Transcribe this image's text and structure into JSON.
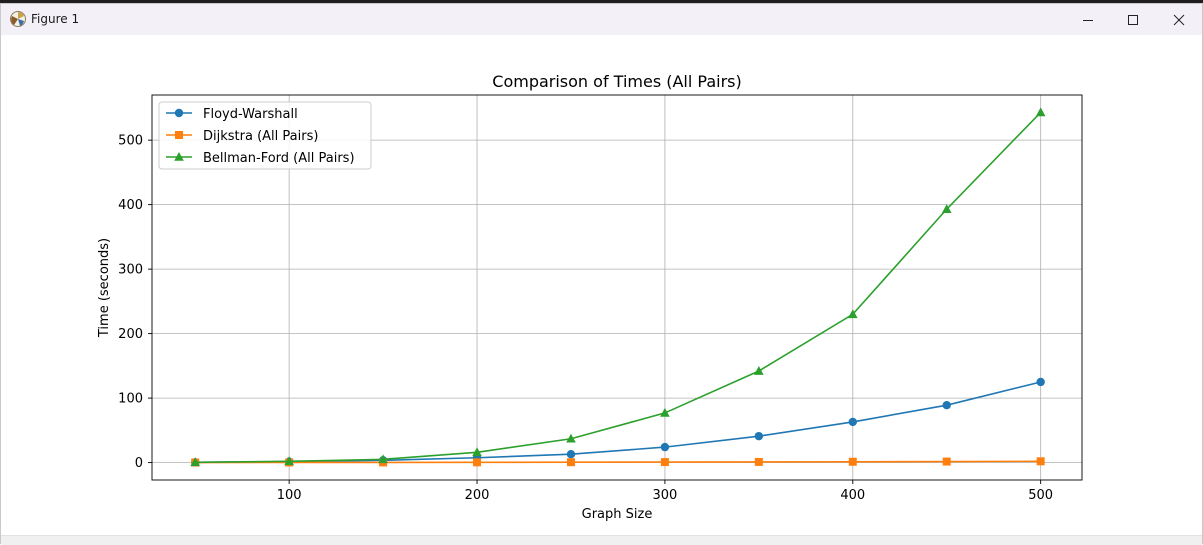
{
  "window": {
    "title": "Figure 1",
    "minimize_icon": "minimize-icon",
    "maximize_icon": "maximize-icon",
    "close_icon": "close-icon"
  },
  "colors": {
    "floyd": "#1f77b4",
    "dijkstra": "#ff7f0e",
    "bellman": "#2ca02c",
    "grid": "#b0b0b0",
    "axes": "#000000"
  },
  "chart_data": {
    "type": "line",
    "title": "Comparison of Times  (All Pairs)",
    "xlabel": "Graph Size",
    "ylabel": "Time (seconds)",
    "xlim": [
      27,
      522
    ],
    "ylim": [
      -27,
      570
    ],
    "xticks": [
      100,
      200,
      300,
      400,
      500
    ],
    "yticks": [
      0,
      100,
      200,
      300,
      400,
      500
    ],
    "grid": true,
    "legend": "upper left",
    "x": [
      50,
      100,
      150,
      200,
      250,
      300,
      350,
      400,
      450,
      500
    ],
    "series": [
      {
        "name": "Floyd-Warshall",
        "marker": "circle",
        "color": "#1f77b4",
        "values": [
          0.5,
          1.5,
          3.5,
          7.5,
          13,
          24,
          41,
          63,
          89,
          125
        ]
      },
      {
        "name": "Dijkstra (All Pairs)",
        "marker": "square",
        "color": "#ff7f0e",
        "values": [
          0.1,
          0.2,
          0.3,
          0.4,
          0.6,
          0.8,
          1.0,
          1.3,
          1.6,
          2.0
        ]
      },
      {
        "name": "Bellman-Ford (All Pairs)",
        "marker": "triangle",
        "color": "#2ca02c",
        "values": [
          0.5,
          2,
          5,
          16,
          37,
          77,
          142,
          230,
          393,
          543
        ]
      }
    ]
  }
}
